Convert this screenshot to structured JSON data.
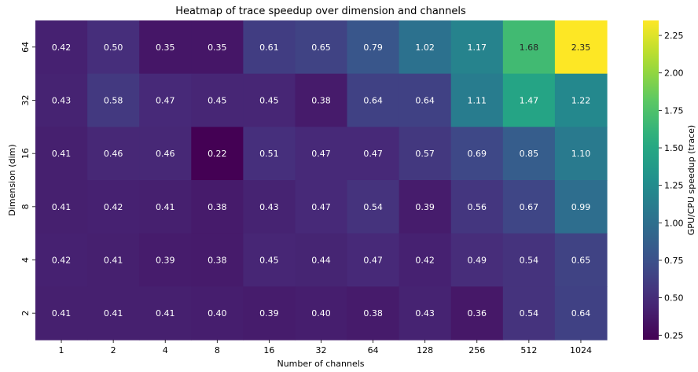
{
  "chart_data": {
    "type": "heatmap",
    "title": "Heatmap of trace speedup over dimension and channels",
    "xlabel": "Number of channels",
    "ylabel": "Dimension (dim)",
    "x_categories": [
      "1",
      "2",
      "4",
      "8",
      "16",
      "32",
      "64",
      "128",
      "256",
      "512",
      "1024"
    ],
    "y_categories": [
      "64",
      "32",
      "16",
      "8",
      "4",
      "2"
    ],
    "values": [
      [
        0.42,
        0.5,
        0.35,
        0.35,
        0.61,
        0.65,
        0.79,
        1.02,
        1.17,
        1.68,
        2.35
      ],
      [
        0.43,
        0.58,
        0.47,
        0.45,
        0.45,
        0.38,
        0.64,
        0.64,
        1.11,
        1.47,
        1.22
      ],
      [
        0.41,
        0.46,
        0.46,
        0.22,
        0.51,
        0.47,
        0.47,
        0.57,
        0.69,
        0.85,
        1.1
      ],
      [
        0.41,
        0.42,
        0.41,
        0.38,
        0.43,
        0.47,
        0.54,
        0.39,
        0.56,
        0.67,
        0.99
      ],
      [
        0.42,
        0.41,
        0.39,
        0.38,
        0.45,
        0.44,
        0.47,
        0.42,
        0.49,
        0.54,
        0.65
      ],
      [
        0.41,
        0.41,
        0.41,
        0.4,
        0.39,
        0.4,
        0.38,
        0.43,
        0.36,
        0.54,
        0.64
      ]
    ],
    "value_labels": [
      [
        "0.42",
        "0.50",
        "0.35",
        "0.35",
        "0.61",
        "0.65",
        "0.79",
        "1.02",
        "1.17",
        "1.68",
        "2.35"
      ],
      [
        "0.43",
        "0.58",
        "0.47",
        "0.45",
        "0.45",
        "0.38",
        "0.64",
        "0.64",
        "1.11",
        "1.47",
        "1.22"
      ],
      [
        "0.41",
        "0.46",
        "0.46",
        "0.22",
        "0.51",
        "0.47",
        "0.47",
        "0.57",
        "0.69",
        "0.85",
        "1.10"
      ],
      [
        "0.41",
        "0.42",
        "0.41",
        "0.38",
        "0.43",
        "0.47",
        "0.54",
        "0.39",
        "0.56",
        "0.67",
        "0.99"
      ],
      [
        "0.42",
        "0.41",
        "0.39",
        "0.38",
        "0.45",
        "0.44",
        "0.47",
        "0.42",
        "0.49",
        "0.54",
        "0.65"
      ],
      [
        "0.41",
        "0.41",
        "0.41",
        "0.40",
        "0.39",
        "0.40",
        "0.38",
        "0.43",
        "0.36",
        "0.54",
        "0.64"
      ]
    ],
    "colormap": "viridis",
    "color_range": [
      0.22,
      2.35
    ],
    "colorbar": {
      "label": "GPU/CPU speedup (trace)",
      "ticks": [
        0.25,
        0.5,
        0.75,
        1.0,
        1.25,
        1.5,
        1.75,
        2.0,
        2.25
      ],
      "tick_labels": [
        "0.25",
        "0.50",
        "0.75",
        "1.00",
        "1.25",
        "1.50",
        "1.75",
        "2.00",
        "2.25"
      ],
      "placement": "right"
    },
    "grid": false
  }
}
